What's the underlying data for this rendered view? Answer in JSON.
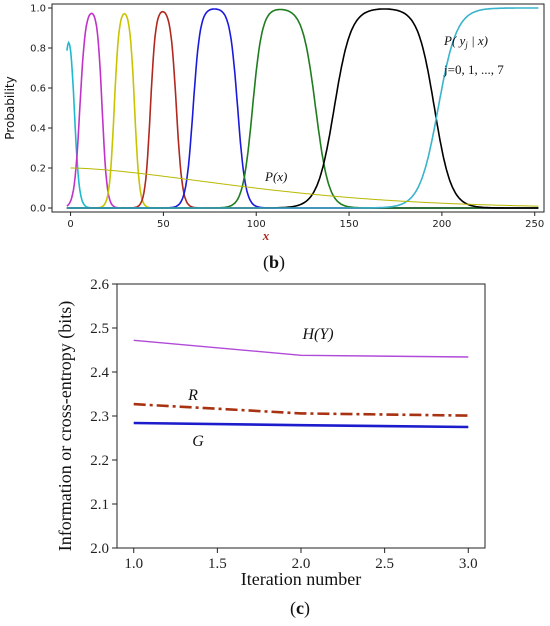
{
  "chart_data": [
    {
      "type": "line",
      "panel_label": {
        "open": "(",
        "letter": "b",
        "close": ")"
      },
      "xlabel": "x",
      "ylabel": "Probability",
      "xlim": [
        -10,
        255
      ],
      "ylim": [
        -0.02,
        1.02
      ],
      "x_ticks": [
        "0",
        "50",
        "100",
        "150",
        "200",
        "250"
      ],
      "y_ticks": [
        "0.0",
        "0.2",
        "0.4",
        "0.6",
        "0.8",
        "1.0"
      ],
      "annotations": {
        "px": "P(x)",
        "pyx": "P( yj | x)",
        "pyx_sub": "j",
        "j_range": "j=0, 1, ..., 7"
      },
      "series": [
        {
          "color": "#1fb8cf",
          "kind": "bump",
          "center": -1,
          "half_width": 3,
          "rise": 1.3,
          "fall": 1.3
        },
        {
          "color": "#c033c8",
          "kind": "bump",
          "center": 11,
          "half_width": 6,
          "rise": 1.5,
          "fall": 1.3
        },
        {
          "color": "#c8c400",
          "kind": "bump",
          "center": 29,
          "half_width": 5.5,
          "rise": 1.3,
          "fall": 1.3
        },
        {
          "color": "#b0281e",
          "kind": "bump",
          "center": 50,
          "half_width": 7,
          "rise": 1.4,
          "fall": 1.6
        },
        {
          "color": "#1a1adb",
          "kind": "bump",
          "center": 78,
          "half_width": 12,
          "rise": 1.9,
          "fall": 2.1
        },
        {
          "color": "#1f7d1f",
          "kind": "bump",
          "center": 115,
          "half_width": 17,
          "rise": 2.6,
          "fall": 3.5
        },
        {
          "color": "#000000",
          "kind": "bump",
          "center": 169,
          "half_width": 27,
          "rise": 4.5,
          "fall": 4.5
        },
        {
          "color": "#3ab3cc",
          "kind": "rise",
          "center": 198,
          "half_width": 0,
          "rise": 5,
          "fall": 0
        },
        {
          "color": "#b8b800",
          "kind": "px",
          "center": 0,
          "half_width": 0,
          "rise": 0,
          "fall": 0
        }
      ]
    },
    {
      "type": "line",
      "panel_label": {
        "open": "(",
        "letter": "c",
        "close": ")"
      },
      "xlabel": "Iteration number",
      "ylabel": "Information or cross-entropy (bits)",
      "xlim": [
        0.9,
        3.1
      ],
      "ylim": [
        2.0,
        2.6
      ],
      "x_ticks": [
        "1.0",
        "1.5",
        "2.0",
        "2.5",
        "3.0"
      ],
      "y_ticks": [
        "2.0",
        "2.1",
        "2.2",
        "2.3",
        "2.4",
        "2.5",
        "2.6"
      ],
      "x": [
        1.0,
        2.0,
        3.0
      ],
      "series": [
        {
          "name": "H(Y)",
          "color": "#b04ad8",
          "values": [
            2.472,
            2.438,
            2.434
          ],
          "style": "solid"
        },
        {
          "name": "R",
          "color": "#a83212",
          "values": [
            2.327,
            2.306,
            2.301
          ],
          "style": "dashdot"
        },
        {
          "name": "G",
          "color": "#1c1ccc",
          "values": [
            2.284,
            2.279,
            2.275
          ],
          "style": "solid"
        }
      ],
      "series_labels": {
        "hy": "H(Y)",
        "r": "R",
        "g": "G"
      }
    }
  ]
}
